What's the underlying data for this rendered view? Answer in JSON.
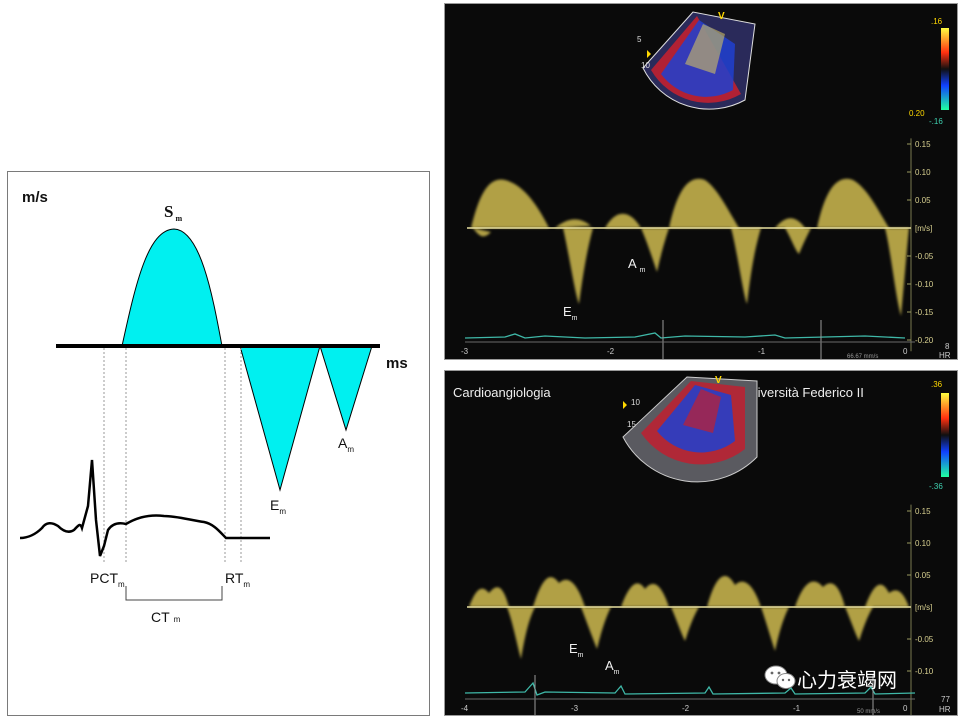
{
  "diagram": {
    "y_axis_label": "m/s",
    "x_axis_label": "ms",
    "s_wave": {
      "letter": "S",
      "sub": "m"
    },
    "e_wave": {
      "letter": "E",
      "sub": "m"
    },
    "a_wave": {
      "letter": "A",
      "sub": "m"
    },
    "pct": {
      "text": "PCT",
      "sub": "m"
    },
    "rt": {
      "text": "RT",
      "sub": "m"
    },
    "ct": {
      "text": "CT",
      "sub": "m"
    },
    "fill_color": "#00f0f0"
  },
  "top_panel": {
    "scale_values": [
      "0.15",
      "0.10",
      "0.05",
      "-0.05",
      "-0.10",
      "-0.15",
      "-0.20"
    ],
    "unit": "[m/s]",
    "top_value": ".16",
    "bottom_value": "-.16",
    "side_value": "0.20",
    "time_ticks": [
      "-3",
      "-2",
      "-1",
      "0"
    ],
    "hr_value": "8",
    "hr_label": "HR",
    "sweep_speed": "66.67 mm/s",
    "sector_depths": [
      "5",
      "10"
    ],
    "marker_v": "V",
    "e_label": {
      "letter": "E",
      "sub": "m"
    },
    "a_label": {
      "letter": "A",
      "sub": "m"
    }
  },
  "bottom_panel": {
    "left_caption": "Cardioangiologia",
    "right_caption": "Università Federico II",
    "scale_values": [
      "0.15",
      "0.10",
      "0.05",
      "-0.05",
      "-0.10"
    ],
    "unit": "[m/s]",
    "top_value": ".36",
    "bottom_value": "-.36",
    "time_ticks": [
      "-4",
      "-3",
      "-2",
      "-1",
      "0"
    ],
    "hr_value": "77",
    "hr_label": "HR",
    "sweep_speed": "50 mm/s",
    "sector_depths": [
      "10",
      "15"
    ],
    "marker_v": "V",
    "e_label": {
      "letter": "E",
      "sub": "m"
    },
    "a_label": {
      "letter": "A",
      "sub": "m"
    }
  },
  "watermark": {
    "text": "心力衰竭网"
  },
  "colors": {
    "trace_yellow": "#e8d25a",
    "ecg_teal": "#3fb8a8",
    "baseline": "#e8e0a0"
  }
}
